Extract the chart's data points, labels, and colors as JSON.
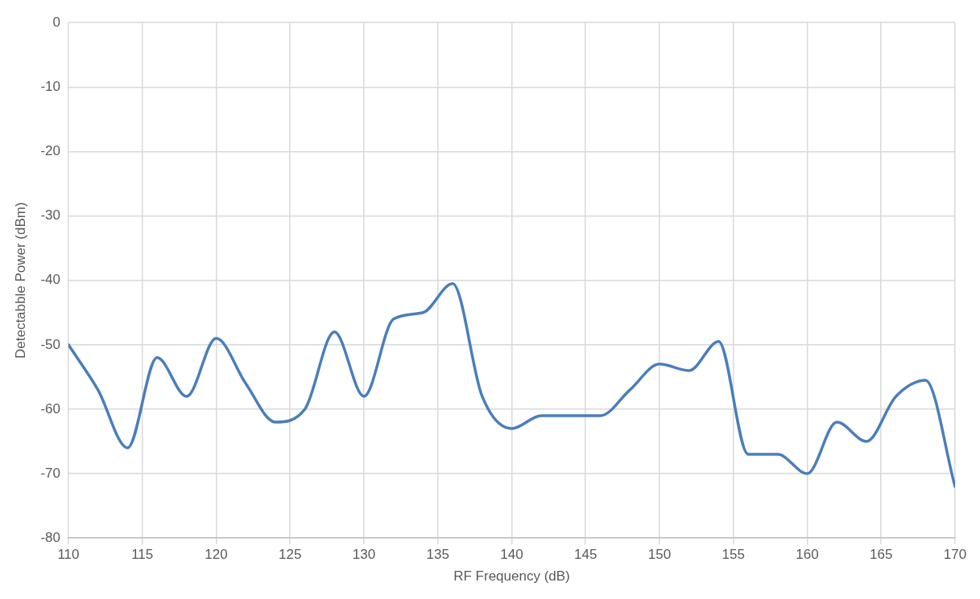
{
  "chart_data": {
    "type": "line",
    "xlabel": "RF Frequency (dB)",
    "ylabel": "Detectabble Power (dBm)",
    "x": [
      110,
      112,
      114,
      116,
      118,
      120,
      122,
      124,
      126,
      128,
      130,
      132,
      134,
      136,
      138,
      140,
      142,
      144,
      146,
      148,
      150,
      152,
      154,
      156,
      158,
      160,
      162,
      164,
      166,
      168,
      170
    ],
    "series": [
      {
        "color": "#4a7ebb",
        "values": [
          -50,
          -57,
          -66,
          -52,
          -58,
          -49,
          -56,
          -62,
          -60,
          -48,
          -58,
          -46,
          -45,
          -40.5,
          -58,
          -63,
          -61,
          -61,
          -61,
          -57,
          -53,
          -54,
          -49.5,
          -67,
          -67,
          -70,
          -62,
          -65,
          -58,
          -55.5,
          -72
        ]
      }
    ],
    "xlim": [
      110,
      170
    ],
    "xticks": [
      110,
      115,
      120,
      125,
      130,
      135,
      140,
      145,
      150,
      155,
      160,
      165,
      170
    ],
    "ylim": [
      -80,
      0
    ],
    "yticks": [
      -80,
      -70,
      -60,
      -50,
      -40,
      -30,
      -20,
      -10,
      0
    ],
    "grid": true,
    "legend": false,
    "marker": "none",
    "line_style": "solid"
  }
}
